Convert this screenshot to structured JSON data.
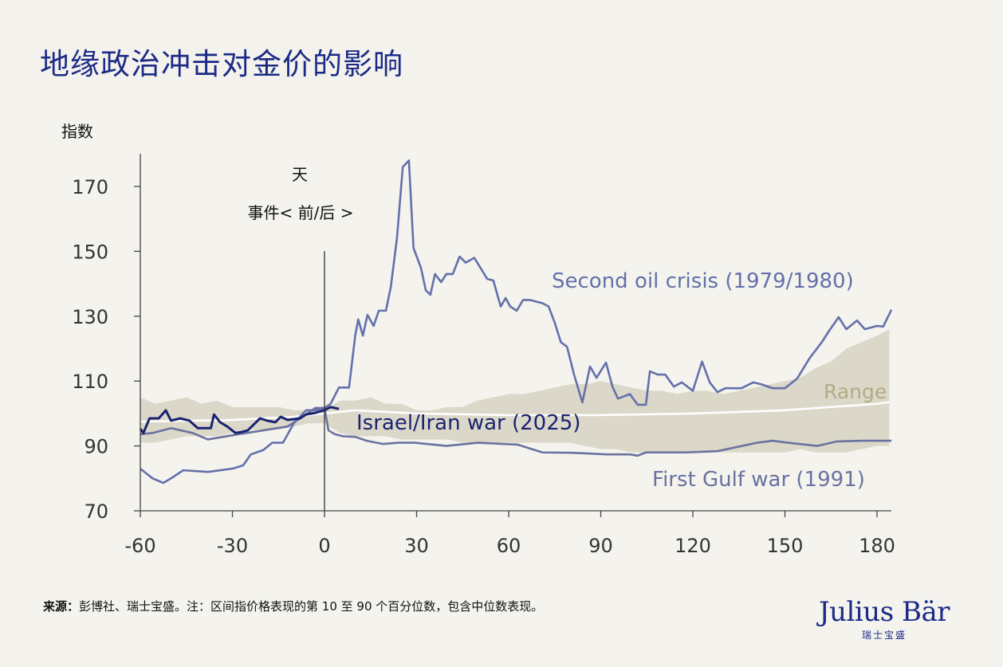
{
  "title": "地缘政治冲击对金价的影响",
  "footnote": {
    "label": "来源：",
    "text": "彭博社、瑞士宝盛。注：区间指价格表现的第 10 至 90 个百分位数，包含中位数表现。"
  },
  "logo": {
    "name": "Julius Bär",
    "sub": "瑞士宝盛"
  },
  "colors": {
    "title": "#1b2a86",
    "second_oil_crisis": "#6470ab",
    "first_gulf_war": "#6a72a0",
    "israel_iran": "#1a2370",
    "range": "#dcd8c9",
    "range_label": "#b3aa84",
    "median": "#ffffff"
  },
  "chart_data": {
    "type": "line",
    "ylabel": "指数",
    "xlabel_top": "天",
    "xlabel_sub": "事件< 前/后 >",
    "xlim": [
      -60,
      185
    ],
    "ylim": [
      70,
      180
    ],
    "xticks": [
      -60,
      -30,
      0,
      30,
      60,
      90,
      120,
      150,
      180
    ],
    "yticks": [
      70,
      90,
      110,
      130,
      150,
      170
    ],
    "event_line_x": 0,
    "grid": false,
    "series": [
      {
        "name": "Second oil crisis (1979/1980)",
        "points": [
          [
            -60,
            83
          ],
          [
            -56,
            80
          ],
          [
            -52.5,
            78.6
          ],
          [
            -50,
            80
          ],
          [
            -46,
            82.5
          ],
          [
            -38,
            82
          ],
          [
            -30,
            83
          ],
          [
            -26.5,
            84
          ],
          [
            -24,
            87.4
          ],
          [
            -20,
            88.7
          ],
          [
            -17,
            91
          ],
          [
            -13.5,
            91
          ],
          [
            -10,
            97
          ],
          [
            -6,
            101
          ],
          [
            -3,
            101
          ],
          [
            0,
            101.7
          ],
          [
            2,
            103
          ],
          [
            4.7,
            108
          ],
          [
            8,
            108
          ],
          [
            10,
            124
          ],
          [
            11,
            129
          ],
          [
            12.5,
            124
          ],
          [
            14,
            130.4
          ],
          [
            16,
            127
          ],
          [
            17.7,
            131.7
          ],
          [
            20,
            131.7
          ],
          [
            21.6,
            139
          ],
          [
            23.6,
            154
          ],
          [
            25.5,
            176
          ],
          [
            27.5,
            178
          ],
          [
            29,
            151
          ],
          [
            31.4,
            145
          ],
          [
            33,
            138
          ],
          [
            34.5,
            136.6
          ],
          [
            36,
            143
          ],
          [
            38,
            140.5
          ],
          [
            39.7,
            143
          ],
          [
            41.8,
            143
          ],
          [
            44,
            148.4
          ],
          [
            46,
            146.5
          ],
          [
            48.8,
            148
          ],
          [
            51.4,
            144
          ],
          [
            53,
            141.5
          ],
          [
            55,
            141
          ],
          [
            57.4,
            133
          ],
          [
            59,
            135.6
          ],
          [
            60.5,
            133
          ],
          [
            62.6,
            131.7
          ],
          [
            64.7,
            135
          ],
          [
            67,
            135
          ],
          [
            71,
            134
          ],
          [
            73,
            133
          ],
          [
            75,
            128
          ],
          [
            77,
            122
          ],
          [
            79,
            120.6
          ],
          [
            81.3,
            112
          ],
          [
            84,
            103.4
          ],
          [
            86.5,
            114.5
          ],
          [
            88.6,
            111
          ],
          [
            91.7,
            115.7
          ],
          [
            93.8,
            108.3
          ],
          [
            95.6,
            104.6
          ],
          [
            99.5,
            106
          ],
          [
            102,
            102.7
          ],
          [
            104.7,
            102.7
          ],
          [
            106,
            113
          ],
          [
            108.6,
            112
          ],
          [
            111,
            112
          ],
          [
            113.8,
            108.3
          ],
          [
            116.4,
            109.6
          ],
          [
            120,
            107
          ],
          [
            123,
            116
          ],
          [
            125.5,
            109.6
          ],
          [
            128,
            106.6
          ],
          [
            130.6,
            107.8
          ],
          [
            135.8,
            107.8
          ],
          [
            139.7,
            109.6
          ],
          [
            142.3,
            109
          ],
          [
            146,
            107.8
          ],
          [
            150,
            107.8
          ],
          [
            154,
            110.8
          ],
          [
            158,
            117
          ],
          [
            162,
            122
          ],
          [
            164.4,
            125.5
          ],
          [
            167.5,
            129.7
          ],
          [
            170,
            126
          ],
          [
            173.5,
            128.7
          ],
          [
            176,
            126
          ],
          [
            180,
            127
          ],
          [
            182,
            126.8
          ],
          [
            184.7,
            132
          ]
        ]
      },
      {
        "name": "First Gulf war (1991)",
        "points": [
          [
            -60,
            93.6
          ],
          [
            -56,
            94
          ],
          [
            -50,
            95.5
          ],
          [
            -43,
            94
          ],
          [
            -38,
            92
          ],
          [
            -28,
            93.6
          ],
          [
            -20,
            94.8
          ],
          [
            -12,
            96
          ],
          [
            -6,
            99.7
          ],
          [
            -3,
            101.7
          ],
          [
            0,
            101.7
          ],
          [
            1.3,
            94.8
          ],
          [
            3.4,
            93.6
          ],
          [
            6,
            93
          ],
          [
            10,
            92.8
          ],
          [
            13.8,
            91.6
          ],
          [
            19,
            90.6
          ],
          [
            24,
            91
          ],
          [
            29.4,
            91
          ],
          [
            39.7,
            90
          ],
          [
            50,
            91
          ],
          [
            63,
            90.4
          ],
          [
            71,
            88
          ],
          [
            81,
            87.9
          ],
          [
            92,
            87.4
          ],
          [
            99.5,
            87.4
          ],
          [
            102,
            87
          ],
          [
            104.7,
            88
          ],
          [
            117.7,
            88
          ],
          [
            128,
            88.4
          ],
          [
            133,
            89.4
          ],
          [
            141,
            91
          ],
          [
            146,
            91.6
          ],
          [
            151,
            91
          ],
          [
            160.5,
            90
          ],
          [
            167,
            91.4
          ],
          [
            175,
            91.6
          ],
          [
            184.7,
            91.6
          ]
        ]
      },
      {
        "name": "Israel/Iran war (2025)",
        "points": [
          [
            -60,
            95.3
          ],
          [
            -59,
            94
          ],
          [
            -57,
            98.5
          ],
          [
            -54,
            98.5
          ],
          [
            -51.7,
            101
          ],
          [
            -50,
            97.8
          ],
          [
            -47,
            98.5
          ],
          [
            -44,
            97.8
          ],
          [
            -41.3,
            95.5
          ],
          [
            -37,
            95.5
          ],
          [
            -36,
            99.7
          ],
          [
            -34,
            97.3
          ],
          [
            -31.7,
            96
          ],
          [
            -29,
            94
          ],
          [
            -27,
            94.3
          ],
          [
            -25,
            94.8
          ],
          [
            -21,
            98.5
          ],
          [
            -18.7,
            97.8
          ],
          [
            -16,
            97.3
          ],
          [
            -14.3,
            99
          ],
          [
            -12,
            98
          ],
          [
            -8,
            98.5
          ],
          [
            -6,
            99.7
          ],
          [
            -3,
            100.2
          ],
          [
            0,
            101
          ],
          [
            2,
            102
          ],
          [
            4.7,
            101.4
          ]
        ]
      }
    ],
    "range": {
      "name": "Range",
      "x": [
        -60,
        -55,
        -50,
        -45,
        -40,
        -35,
        -30,
        -25,
        -20,
        -15,
        -10,
        -5,
        0,
        5,
        10,
        15,
        20,
        25,
        30,
        35,
        40,
        45,
        50,
        55,
        60,
        65,
        70,
        75,
        80,
        85,
        90,
        95,
        100,
        105,
        110,
        115,
        120,
        125,
        130,
        135,
        140,
        145,
        150,
        155,
        160,
        165,
        170,
        175,
        180,
        184
      ],
      "upper": [
        105,
        103,
        104,
        105,
        103,
        104,
        102,
        102,
        102,
        102,
        101,
        101,
        101,
        104,
        104,
        105,
        103,
        103,
        101,
        101,
        102,
        102,
        104,
        105,
        106,
        106,
        107,
        108,
        109,
        109,
        110,
        109,
        108,
        107,
        107,
        106,
        107,
        107,
        106,
        107,
        108,
        109,
        110,
        111,
        114,
        116,
        120,
        122,
        124,
        126
      ],
      "lower": [
        91,
        91,
        92,
        93,
        93,
        93,
        94,
        95,
        95,
        95,
        96,
        97,
        97,
        94,
        93,
        93,
        93,
        92,
        92,
        92,
        92,
        91,
        91,
        91,
        91,
        91,
        91,
        91,
        91,
        90,
        89,
        89,
        88,
        88,
        88,
        88,
        88,
        88,
        88,
        88,
        88,
        88,
        88,
        89,
        88,
        88,
        88,
        89,
        90,
        90
      ]
    },
    "median": {
      "x": [
        -60,
        -30,
        -10,
        0,
        10,
        30,
        60,
        90,
        120,
        150,
        180,
        184
      ],
      "values": [
        97.5,
        98,
        99,
        100,
        101,
        100,
        99.5,
        99.5,
        100,
        101,
        103,
        103.5
      ]
    }
  }
}
